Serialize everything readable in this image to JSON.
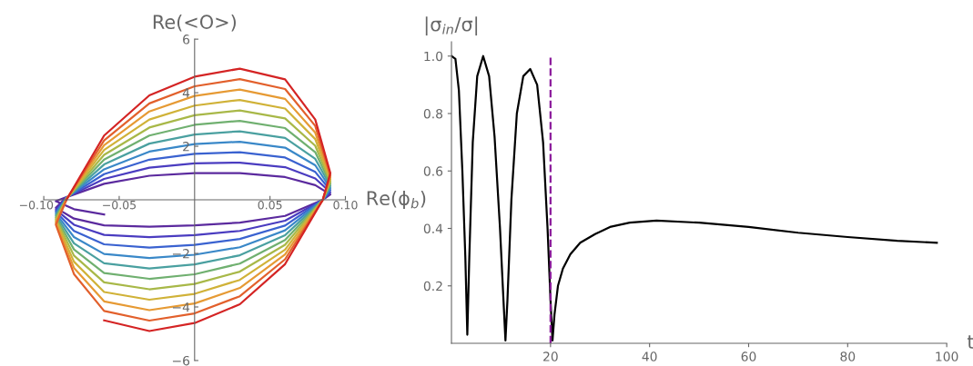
{
  "chart_data": [
    {
      "type": "line",
      "xlabel": "Re(ϕ$_{b}$)",
      "ylabel": "Re(<O>)",
      "xlim": [
        -0.1,
        0.1
      ],
      "ylim": [
        -6,
        6
      ],
      "xticks": [
        {
          "value": -0.1,
          "label": "−0.10"
        },
        {
          "value": -0.05,
          "label": "−0.05"
        },
        {
          "value": 0.05,
          "label": "0.05"
        },
        {
          "value": 0.1,
          "label": "0.10"
        }
      ],
      "yticks": [
        {
          "value": -6,
          "label": "−6"
        },
        {
          "value": -4,
          "label": "−4"
        },
        {
          "value": -2,
          "label": "−2"
        },
        2,
        4,
        6
      ],
      "grid": false,
      "legend": false,
      "marker": "none",
      "line_style": "solid",
      "series": [
        {
          "color": "#5b2a9e",
          "x": [
            -0.06,
            -0.08,
            -0.092,
            -0.085,
            -0.06,
            -0.03,
            0,
            0.03,
            0.06,
            0.08,
            0.09,
            0.085,
            0.06,
            0.03,
            0,
            -0.03,
            -0.06,
            -0.08,
            -0.092,
            -0.085
          ],
          "values": [
            -0.55,
            -0.35,
            -0.05,
            0.1,
            0.6,
            0.9,
            1.0,
            1.0,
            0.85,
            0.55,
            0.2,
            0,
            -0.6,
            -0.85,
            -0.95,
            -1.0,
            -0.95,
            -0.7,
            -0.3,
            0.09
          ]
        },
        {
          "color": "#4a3cc0",
          "x": [
            -0.085,
            -0.06,
            -0.03,
            0,
            0.03,
            0.06,
            0.08,
            0.09,
            0.085,
            0.06,
            0.03,
            0,
            -0.03,
            -0.06,
            -0.08,
            -0.092,
            -0.085
          ],
          "values": [
            0.09,
            0.78,
            1.2,
            1.36,
            1.39,
            1.22,
            0.8,
            0.28,
            0,
            -0.78,
            -1.16,
            -1.32,
            -1.39,
            -1.31,
            -0.93,
            -0.37,
            0.08
          ]
        },
        {
          "color": "#3a62d0",
          "x": [
            -0.085,
            -0.06,
            -0.03,
            0,
            0.03,
            0.06,
            0.08,
            0.09,
            0.085,
            0.06,
            0.03,
            0,
            -0.03,
            -0.06,
            -0.08,
            -0.092,
            -0.085
          ],
          "values": [
            0.08,
            0.96,
            1.5,
            1.72,
            1.78,
            1.58,
            1.04,
            0.36,
            0,
            -0.96,
            -1.46,
            -1.68,
            -1.78,
            -1.66,
            -1.16,
            -0.44,
            0.07
          ]
        },
        {
          "color": "#3a88c8",
          "x": [
            -0.085,
            -0.06,
            -0.03,
            0,
            0.03,
            0.06,
            0.08,
            0.09,
            0.085,
            0.06,
            0.03,
            0,
            -0.03,
            -0.06,
            -0.08,
            -0.092,
            -0.085
          ],
          "values": [
            0.07,
            1.14,
            1.8,
            2.08,
            2.17,
            1.95,
            1.29,
            0.44,
            0,
            -1.14,
            -1.77,
            -2.05,
            -2.17,
            -2.02,
            -1.39,
            -0.51,
            0.06
          ]
        },
        {
          "color": "#4aa0a0",
          "x": [
            -0.085,
            -0.06,
            -0.03,
            0,
            0.03,
            0.06,
            0.08,
            0.09,
            0.085,
            0.06,
            0.03,
            0,
            -0.03,
            -0.06,
            -0.08,
            -0.092,
            -0.085
          ],
          "values": [
            0.06,
            1.32,
            2.1,
            2.44,
            2.56,
            2.31,
            1.53,
            0.52,
            0,
            -1.32,
            -2.07,
            -2.41,
            -2.56,
            -2.37,
            -1.62,
            -0.58,
            0.05
          ]
        },
        {
          "color": "#70b070",
          "x": [
            -0.085,
            -0.06,
            -0.03,
            0,
            0.03,
            0.06,
            0.08,
            0.09,
            0.085,
            0.06,
            0.03,
            0,
            -0.03,
            -0.06,
            -0.08,
            -0.092,
            -0.085
          ],
          "values": [
            0.05,
            1.5,
            2.4,
            2.8,
            2.95,
            2.68,
            1.78,
            0.6,
            0,
            -1.5,
            -2.38,
            -2.78,
            -2.95,
            -2.73,
            -1.85,
            -0.65,
            0.04
          ]
        },
        {
          "color": "#a8b848",
          "x": [
            -0.085,
            -0.06,
            -0.03,
            0,
            0.03,
            0.06,
            0.08,
            0.09,
            0.085,
            0.06,
            0.03,
            0,
            -0.03,
            -0.06,
            -0.08,
            -0.092,
            -0.085
          ],
          "values": [
            0.04,
            1.68,
            2.7,
            3.16,
            3.34,
            3.04,
            2.02,
            0.68,
            0,
            -1.68,
            -2.68,
            -3.14,
            -3.34,
            -3.08,
            -2.08,
            -0.72,
            0.03
          ]
        },
        {
          "color": "#d0b238",
          "x": [
            -0.085,
            -0.06,
            -0.03,
            0,
            0.03,
            0.06,
            0.08,
            0.09,
            0.085,
            0.06,
            0.03,
            0,
            -0.03,
            -0.06,
            -0.08,
            -0.092,
            -0.085
          ],
          "values": [
            0.03,
            1.86,
            3.0,
            3.52,
            3.73,
            3.41,
            2.27,
            0.76,
            0,
            -1.86,
            -2.99,
            -3.51,
            -3.73,
            -3.44,
            -2.31,
            -0.79,
            0.02
          ]
        },
        {
          "color": "#e69a34",
          "x": [
            -0.085,
            -0.06,
            -0.03,
            0,
            0.03,
            0.06,
            0.08,
            0.09,
            0.085,
            0.06,
            0.03,
            0,
            -0.03,
            -0.06,
            -0.08,
            -0.092,
            -0.085
          ],
          "values": [
            0.02,
            2.04,
            3.3,
            3.88,
            4.12,
            3.77,
            2.51,
            0.84,
            0,
            -2.04,
            -3.29,
            -3.87,
            -4.12,
            -3.79,
            -2.54,
            -0.86,
            0.01
          ]
        },
        {
          "color": "#e2602c",
          "x": [
            -0.085,
            -0.06,
            -0.03,
            0,
            0.03,
            0.06,
            0.08,
            0.09,
            0.085,
            0.06,
            0.03,
            0,
            -0.03,
            -0.06,
            -0.08,
            -0.092,
            -0.085
          ],
          "values": [
            0.01,
            2.22,
            3.6,
            4.24,
            4.51,
            4.14,
            2.76,
            0.92,
            0,
            -2.22,
            -3.6,
            -4.24,
            -4.51,
            -4.15,
            -2.77,
            -0.93,
            0
          ]
        },
        {
          "color": "#d42424",
          "x": [
            -0.085,
            -0.06,
            -0.03,
            0,
            0.03,
            0.06,
            0.08,
            0.09,
            0.085,
            0.06,
            0.03,
            0,
            -0.03,
            -0.06
          ],
          "values": [
            0,
            2.4,
            3.9,
            4.6,
            4.9,
            4.5,
            3.0,
            1.0,
            0,
            -2.4,
            -3.9,
            -4.6,
            -4.9,
            -4.5
          ]
        }
      ]
    },
    {
      "type": "line",
      "xlabel": "t",
      "ylabel": "|σ$_{in}$/σ|",
      "xlim": [
        0,
        100
      ],
      "ylim": [
        0,
        1.05
      ],
      "xticks": [
        20,
        40,
        60,
        80,
        100
      ],
      "yticks": [
        0.2,
        0.4,
        0.6,
        0.8,
        {
          "value": 1.0,
          "label": "1.0"
        }
      ],
      "grid": false,
      "legend": false,
      "marker": "none",
      "line_style": "solid",
      "ref_lines": [
        {
          "axis": "x",
          "value": 20,
          "color": "#8b1a9b",
          "line_style": "dashed"
        }
      ],
      "series": [
        {
          "color": "#000000",
          "x": [
            0,
            0.8,
            1.5,
            2.2,
            2.8,
            3.2,
            3.6,
            4.3,
            5.2,
            6.4,
            7.6,
            8.7,
            9.8,
            10.5,
            10.9,
            11.3,
            12.1,
            13.2,
            14.5,
            15.9,
            17.3,
            18.5,
            19.4,
            20.0,
            20.4,
            20.8,
            21.5,
            22.5,
            24,
            26,
            29,
            32,
            36,
            41.4,
            50,
            60,
            70,
            80,
            90,
            98
          ],
          "values": [
            1.0,
            0.99,
            0.88,
            0.6,
            0.3,
            0.03,
            0.3,
            0.7,
            0.93,
            1.0,
            0.93,
            0.72,
            0.4,
            0.15,
            0.01,
            0.15,
            0.5,
            0.8,
            0.93,
            0.955,
            0.9,
            0.7,
            0.4,
            0.15,
            0.01,
            0.1,
            0.2,
            0.26,
            0.31,
            0.35,
            0.38,
            0.405,
            0.42,
            0.427,
            0.42,
            0.405,
            0.385,
            0.37,
            0.357,
            0.35
          ]
        }
      ]
    }
  ]
}
